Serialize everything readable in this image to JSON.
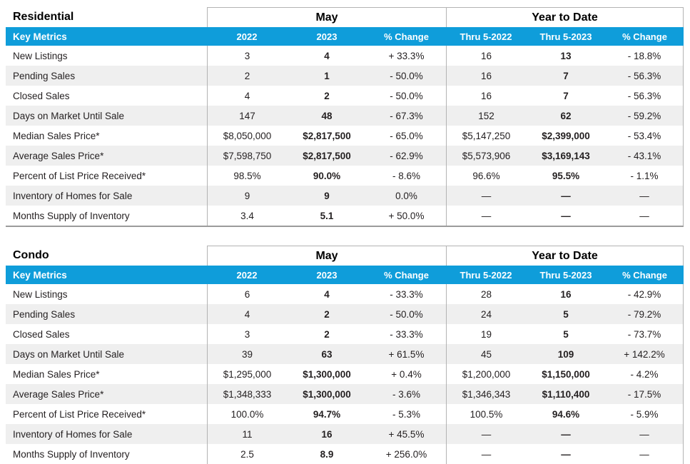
{
  "theme": {
    "accent_color": "#0f9dda",
    "stripe_color": "#efefef",
    "border_color": "#b3b3b3",
    "bottom_rule_color": "#9b9b9b"
  },
  "tables": [
    {
      "title": "Residential",
      "group_headers": {
        "month": "May",
        "ytd": "Year to Date"
      },
      "columns": [
        "Key Metrics",
        "2022",
        "2023",
        "% Change",
        "Thru 5-2022",
        "Thru 5-2023",
        "% Change"
      ],
      "rows": [
        {
          "cells": [
            "New Listings",
            "3",
            "4",
            "+ 33.3%",
            "16",
            "13",
            "- 18.8%"
          ]
        },
        {
          "cells": [
            "Pending Sales",
            "2",
            "1",
            "- 50.0%",
            "16",
            "7",
            "- 56.3%"
          ]
        },
        {
          "cells": [
            "Closed Sales",
            "4",
            "2",
            "- 50.0%",
            "16",
            "7",
            "- 56.3%"
          ]
        },
        {
          "cells": [
            "Days on Market Until Sale",
            "147",
            "48",
            "- 67.3%",
            "152",
            "62",
            "- 59.2%"
          ]
        },
        {
          "cells": [
            "Median Sales Price*",
            "$8,050,000",
            "$2,817,500",
            "- 65.0%",
            "$5,147,250",
            "$2,399,000",
            "- 53.4%"
          ]
        },
        {
          "cells": [
            "Average Sales Price*",
            "$7,598,750",
            "$2,817,500",
            "- 62.9%",
            "$5,573,906",
            "$3,169,143",
            "- 43.1%"
          ]
        },
        {
          "cells": [
            "Percent of List Price Received*",
            "98.5%",
            "90.0%",
            "- 8.6%",
            "96.6%",
            "95.5%",
            "- 1.1%"
          ]
        },
        {
          "cells": [
            "Inventory of Homes for Sale",
            "9",
            "9",
            "0.0%",
            "—",
            "—",
            "—"
          ]
        },
        {
          "cells": [
            "Months Supply of Inventory",
            "3.4",
            "5.1",
            "+ 50.0%",
            "—",
            "—",
            "—"
          ]
        }
      ]
    },
    {
      "title": "Condo",
      "group_headers": {
        "month": "May",
        "ytd": "Year to Date"
      },
      "columns": [
        "Key Metrics",
        "2022",
        "2023",
        "% Change",
        "Thru 5-2022",
        "Thru 5-2023",
        "% Change"
      ],
      "rows": [
        {
          "cells": [
            "New Listings",
            "6",
            "4",
            "- 33.3%",
            "28",
            "16",
            "- 42.9%"
          ]
        },
        {
          "cells": [
            "Pending Sales",
            "4",
            "2",
            "- 50.0%",
            "24",
            "5",
            "- 79.2%"
          ]
        },
        {
          "cells": [
            "Closed Sales",
            "3",
            "2",
            "- 33.3%",
            "19",
            "5",
            "- 73.7%"
          ]
        },
        {
          "cells": [
            "Days on Market Until Sale",
            "39",
            "63",
            "+ 61.5%",
            "45",
            "109",
            "+ 142.2%"
          ]
        },
        {
          "cells": [
            "Median Sales Price*",
            "$1,295,000",
            "$1,300,000",
            "+ 0.4%",
            "$1,200,000",
            "$1,150,000",
            "- 4.2%"
          ]
        },
        {
          "cells": [
            "Average Sales Price*",
            "$1,348,333",
            "$1,300,000",
            "- 3.6%",
            "$1,346,343",
            "$1,110,400",
            "- 17.5%"
          ]
        },
        {
          "cells": [
            "Percent of List Price Received*",
            "100.0%",
            "94.7%",
            "- 5.3%",
            "100.5%",
            "94.6%",
            "- 5.9%"
          ]
        },
        {
          "cells": [
            "Inventory of Homes for Sale",
            "11",
            "16",
            "+ 45.5%",
            "—",
            "—",
            "—"
          ]
        },
        {
          "cells": [
            "Months Supply of Inventory",
            "2.5",
            "8.9",
            "+ 256.0%",
            "—",
            "—",
            "—"
          ]
        }
      ]
    }
  ]
}
